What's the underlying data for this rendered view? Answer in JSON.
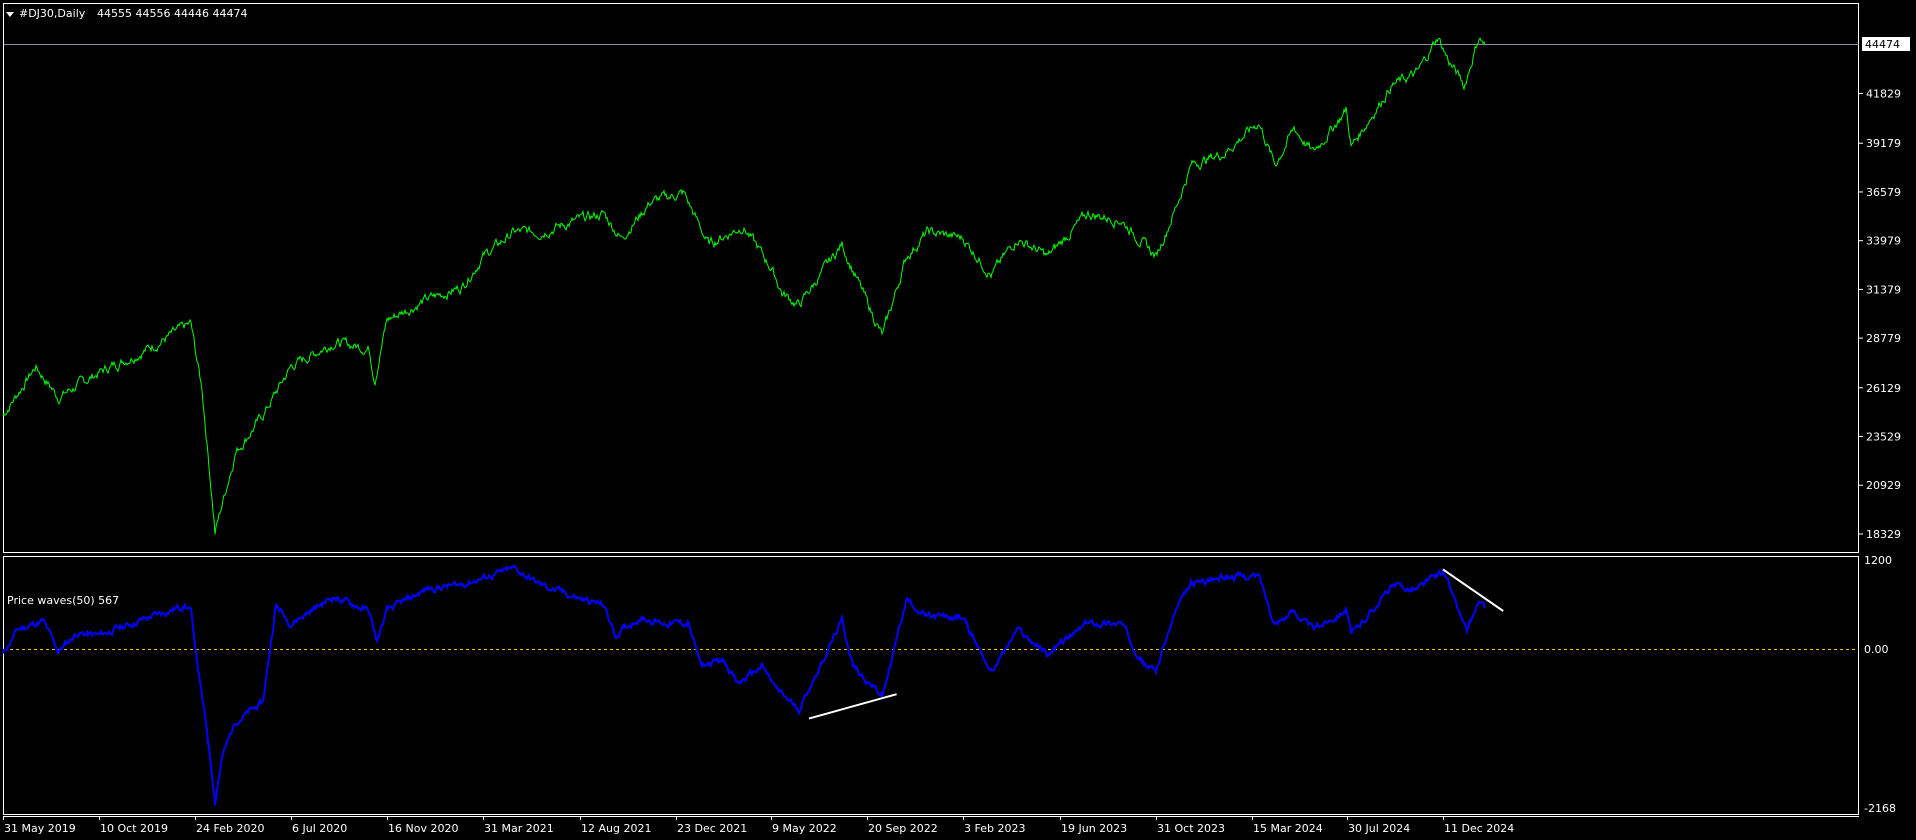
{
  "header": {
    "symbol_timeframe": "#DJ30,Daily",
    "ohlc": "44555 44556 44446 44474",
    "menu_icon": "triangle-down-icon"
  },
  "indicator": {
    "label": "Price waves(50) 567"
  },
  "colors": {
    "background": "#000000",
    "price_line": "#00ff00",
    "indicator_line": "#0000ff",
    "trendline": "#ffffff",
    "zero_line": "#ffc000",
    "frame": "#ffffff",
    "bid_line": "#8a94a0"
  },
  "chart_data": [
    {
      "type": "line",
      "title": "#DJ30,Daily",
      "y_axis_ticks": [
        "41829",
        "39179",
        "36579",
        "33979",
        "31379",
        "28779",
        "26129",
        "23529",
        "20929",
        "18329"
      ],
      "current_price_label": "44474",
      "x_axis_ticks": [
        "31 May 2019",
        "10 Oct 2019",
        "24 Feb 2020",
        "6 Jul 2020",
        "16 Nov 2020",
        "31 Mar 2021",
        "12 Aug 2021",
        "23 Dec 2021",
        "9 May 2022",
        "20 Sep 2022",
        "3 Feb 2023",
        "19 Jun 2023",
        "31 Oct 2023",
        "15 Mar 2024",
        "30 Jul 2024",
        "11 Dec 2024"
      ],
      "series": [
        {
          "points": [
            [
              "2019-05-31",
              24650
            ],
            [
              "2019-07-15",
              27260
            ],
            [
              "2019-08-15",
              25630
            ],
            [
              "2019-10-10",
              26940
            ],
            [
              "2019-12-20",
              28240
            ],
            [
              "2020-02-18",
              29540
            ],
            [
              "2020-03-05",
              25960
            ],
            [
              "2020-03-23",
              18460
            ],
            [
              "2020-04-20",
              22690
            ],
            [
              "2020-05-28",
              24650
            ],
            [
              "2020-07-06",
              27260
            ],
            [
              "2020-09-03",
              28560
            ],
            [
              "2020-10-22",
              28240
            ],
            [
              "2020-10-30",
              26600
            ],
            [
              "2020-11-16",
              29740
            ],
            [
              "2021-01-12",
              30850
            ],
            [
              "2021-03-01",
              31500
            ],
            [
              "2021-03-31",
              33130
            ],
            [
              "2021-05-13",
              34440
            ],
            [
              "2021-06-18",
              34440
            ],
            [
              "2021-08-12",
              35090
            ],
            [
              "2021-09-14",
              35410
            ],
            [
              "2021-10-08",
              34110
            ],
            [
              "2021-11-18",
              36060
            ],
            [
              "2022-01-03",
              36520
            ],
            [
              "2022-02-08",
              33780
            ],
            [
              "2022-03-30",
              34760
            ],
            [
              "2022-05-10",
              32480
            ],
            [
              "2022-05-25",
              31170
            ],
            [
              "2022-06-17",
              30520
            ],
            [
              "2022-08-16",
              33780
            ],
            [
              "2022-09-22",
              30520
            ],
            [
              "2022-10-12",
              28890
            ],
            [
              "2022-11-15",
              33130
            ],
            [
              "2022-12-15",
              34440
            ],
            [
              "2023-02-03",
              34110
            ],
            [
              "2023-03-15",
              32150
            ],
            [
              "2023-04-20",
              34110
            ],
            [
              "2023-06-02",
              33130
            ],
            [
              "2023-07-28",
              35410
            ],
            [
              "2023-09-12",
              35090
            ],
            [
              "2023-10-31",
              33130
            ],
            [
              "2023-11-28",
              35740
            ],
            [
              "2023-12-20",
              38020
            ],
            [
              "2024-02-05",
              38670
            ],
            [
              "2024-03-25",
              40300
            ],
            [
              "2024-04-17",
              38020
            ],
            [
              "2024-05-15",
              39970
            ],
            [
              "2024-06-11",
              38670
            ],
            [
              "2024-07-29",
              40950
            ],
            [
              "2024-08-05",
              38990
            ],
            [
              "2024-09-30",
              42260
            ],
            [
              "2024-11-05",
              42910
            ],
            [
              "2024-12-04",
              44860
            ],
            [
              "2024-12-19",
              43560
            ],
            [
              "2025-01-10",
              42260
            ],
            [
              "2025-01-30",
              44860
            ],
            [
              "2025-02-07",
              44474
            ]
          ]
        }
      ]
    },
    {
      "type": "line",
      "title": "Price waves(50) 567",
      "y_axis_ticks": [
        "1200",
        "0.00",
        "-2168"
      ],
      "ylim": [
        -2168,
        1200
      ],
      "series": [
        {
          "points": [
            [
              "2019-05-31",
              -70
            ],
            [
              "2019-06-20",
              270
            ],
            [
              "2019-07-25",
              390
            ],
            [
              "2019-08-15",
              -30
            ],
            [
              "2019-09-10",
              220
            ],
            [
              "2019-10-10",
              190
            ],
            [
              "2019-12-20",
              440
            ],
            [
              "2020-02-10",
              610
            ],
            [
              "2020-02-18",
              530
            ],
            [
              "2020-03-02",
              -490
            ],
            [
              "2020-03-12",
              -1180
            ],
            [
              "2020-03-23",
              -2110
            ],
            [
              "2020-04-01",
              -1520
            ],
            [
              "2020-04-20",
              -1010
            ],
            [
              "2020-05-28",
              -750
            ],
            [
              "2020-06-15",
              610
            ],
            [
              "2020-07-06",
              360
            ],
            [
              "2020-09-03",
              730
            ],
            [
              "2020-10-22",
              530
            ],
            [
              "2020-11-02",
              100
            ],
            [
              "2020-11-16",
              530
            ],
            [
              "2021-01-12",
              840
            ],
            [
              "2021-03-01",
              900
            ],
            [
              "2021-05-13",
              1120
            ],
            [
              "2021-06-18",
              900
            ],
            [
              "2021-08-12",
              700
            ],
            [
              "2021-09-14",
              610
            ],
            [
              "2021-09-30",
              190
            ],
            [
              "2021-11-02",
              440
            ],
            [
              "2021-12-06",
              360
            ],
            [
              "2022-01-10",
              360
            ],
            [
              "2022-01-28",
              -240
            ],
            [
              "2022-03-03",
              -150
            ],
            [
              "2022-03-22",
              -490
            ],
            [
              "2022-04-26",
              -240
            ],
            [
              "2022-05-18",
              -580
            ],
            [
              "2022-06-17",
              -840
            ],
            [
              "2022-08-16",
              390
            ],
            [
              "2022-09-01",
              -240
            ],
            [
              "2022-10-12",
              -660
            ],
            [
              "2022-11-15",
              700
            ],
            [
              "2022-12-15",
              440
            ],
            [
              "2023-02-03",
              440
            ],
            [
              "2023-03-15",
              -320
            ],
            [
              "2023-04-20",
              270
            ],
            [
              "2023-06-02",
              -70
            ],
            [
              "2023-07-28",
              360
            ],
            [
              "2023-09-12",
              360
            ],
            [
              "2023-10-17",
              -240
            ],
            [
              "2023-10-31",
              -290
            ],
            [
              "2023-11-28",
              530
            ],
            [
              "2023-12-20",
              900
            ],
            [
              "2024-02-05",
              1010
            ],
            [
              "2024-03-25",
              1010
            ],
            [
              "2024-04-17",
              360
            ],
            [
              "2024-05-15",
              530
            ],
            [
              "2024-06-11",
              270
            ],
            [
              "2024-07-29",
              560
            ],
            [
              "2024-08-05",
              190
            ],
            [
              "2024-09-30",
              870
            ],
            [
              "2024-11-05",
              840
            ],
            [
              "2024-12-11",
              1090
            ],
            [
              "2024-12-27",
              700
            ],
            [
              "2025-01-13",
              220
            ],
            [
              "2025-01-30",
              660
            ],
            [
              "2025-02-07",
              567
            ]
          ]
        }
      ],
      "zero_line": 0,
      "trendlines": [
        {
          "from": [
            "2022-07-01",
            -970
          ],
          "to": [
            "2022-11-01",
            -630
          ]
        },
        {
          "from": [
            "2024-12-11",
            1110
          ],
          "to": [
            "2025-03-05",
            530
          ]
        }
      ]
    }
  ]
}
